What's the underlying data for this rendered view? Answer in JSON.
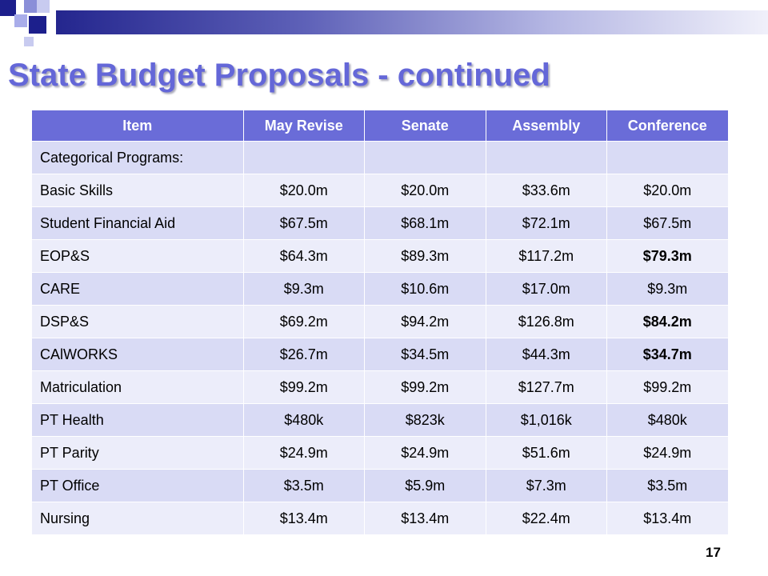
{
  "slide": {
    "title": "State Budget Proposals - continued",
    "page_number": "17",
    "colors": {
      "title": "#6467d8",
      "header_fill": "#6a6cd8",
      "row_fill_dark": "#d9dbf5",
      "row_fill_light": "#ecedfa",
      "accent_dark": "#1c1f8c"
    }
  },
  "table": {
    "headers": [
      "Item",
      "May Revise",
      "Senate",
      "Assembly",
      "Conference"
    ],
    "rows": [
      [
        "Categorical Programs:",
        "",
        "",
        "",
        ""
      ],
      [
        "Basic Skills",
        "$20.0m",
        "$20.0m",
        "$33.6m",
        "$20.0m"
      ],
      [
        "Student Financial Aid",
        "$67.5m",
        "$68.1m",
        "$72.1m",
        "$67.5m"
      ],
      [
        "EOP&S",
        "$64.3m",
        "$89.3m",
        "$117.2m",
        "$79.3m"
      ],
      [
        "CARE",
        "$9.3m",
        "$10.6m",
        "$17.0m",
        "$9.3m"
      ],
      [
        "DSP&S",
        "$69.2m",
        "$94.2m",
        "$126.8m",
        "$84.2m"
      ],
      [
        "CAlWORKS",
        "$26.7m",
        "$34.5m",
        "$44.3m",
        "$34.7m"
      ],
      [
        "Matriculation",
        "$99.2m",
        "$99.2m",
        "$127.7m",
        "$99.2m"
      ],
      [
        "PT Health",
        "$480k",
        "$823k",
        "$1,016k",
        "$480k"
      ],
      [
        "PT Parity",
        "$24.9m",
        "$24.9m",
        "$51.6m",
        "$24.9m"
      ],
      [
        "PT Office",
        "$3.5m",
        "$5.9m",
        "$7.3m",
        "$3.5m"
      ],
      [
        "Nursing",
        "$13.4m",
        "$13.4m",
        "$22.4m",
        "$13.4m"
      ]
    ]
  }
}
